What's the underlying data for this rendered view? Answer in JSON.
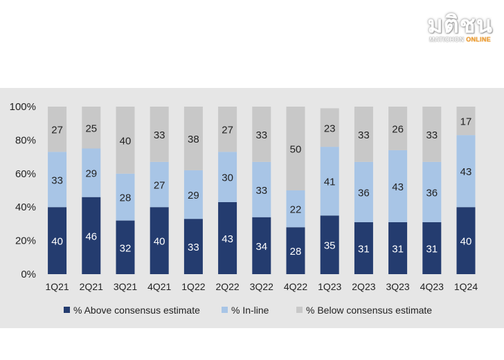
{
  "logo": {
    "thai": "มติชน",
    "sub_a": "MATICHON",
    "sub_b": "ONLINE"
  },
  "chart_data": {
    "type": "bar",
    "stacked": true,
    "categories": [
      "1Q21",
      "2Q21",
      "3Q21",
      "4Q21",
      "1Q22",
      "2Q22",
      "3Q22",
      "4Q22",
      "1Q23",
      "2Q23",
      "3Q23",
      "4Q23",
      "1Q24"
    ],
    "series": [
      {
        "name": "% Above consensus estimate",
        "color": "#243c6f",
        "label_color": "#ffffff",
        "values": [
          40,
          46,
          32,
          40,
          33,
          43,
          34,
          28,
          35,
          31,
          31,
          31,
          40
        ]
      },
      {
        "name": "% In-line",
        "color": "#a8c5e6",
        "label_color": "#222222",
        "values": [
          33,
          29,
          28,
          27,
          29,
          30,
          33,
          22,
          41,
          36,
          43,
          36,
          43
        ]
      },
      {
        "name": "% Below consensus estimate",
        "color": "#c8c8c8",
        "label_color": "#222222",
        "values": [
          27,
          25,
          40,
          33,
          38,
          27,
          33,
          50,
          23,
          33,
          26,
          33,
          17
        ]
      }
    ],
    "yticks": [
      "0%",
      "20%",
      "40%",
      "60%",
      "80%",
      "100%"
    ],
    "ylim": [
      0,
      100
    ],
    "grid": false,
    "legend_position": "bottom"
  }
}
